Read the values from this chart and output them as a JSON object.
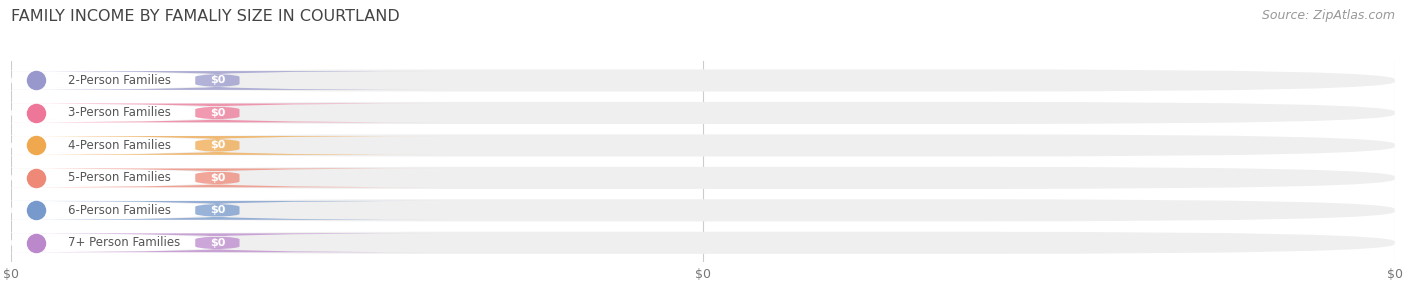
{
  "title": "FAMILY INCOME BY FAMALIY SIZE IN COURTLAND",
  "source": "Source: ZipAtlas.com",
  "categories": [
    "2-Person Families",
    "3-Person Families",
    "4-Person Families",
    "5-Person Families",
    "6-Person Families",
    "7+ Person Families"
  ],
  "values": [
    0,
    0,
    0,
    0,
    0,
    0
  ],
  "bar_colors": [
    "#9898cc",
    "#ee7799",
    "#f0a84e",
    "#ee8877",
    "#7799cc",
    "#bb88cc"
  ],
  "bg_color": "#ffffff",
  "bar_bg_color": "#efefef",
  "label_bg_color": "#ffffff",
  "title_color": "#444444",
  "label_color": "#555555",
  "value_label_color": "#ffffff",
  "source_color": "#999999",
  "bar_height": 0.68,
  "title_fontsize": 11.5,
  "label_fontsize": 8.5,
  "value_fontsize": 8,
  "source_fontsize": 9,
  "grid_color": "#cccccc",
  "n_gridlines": 3,
  "xlim_max": 1.0
}
